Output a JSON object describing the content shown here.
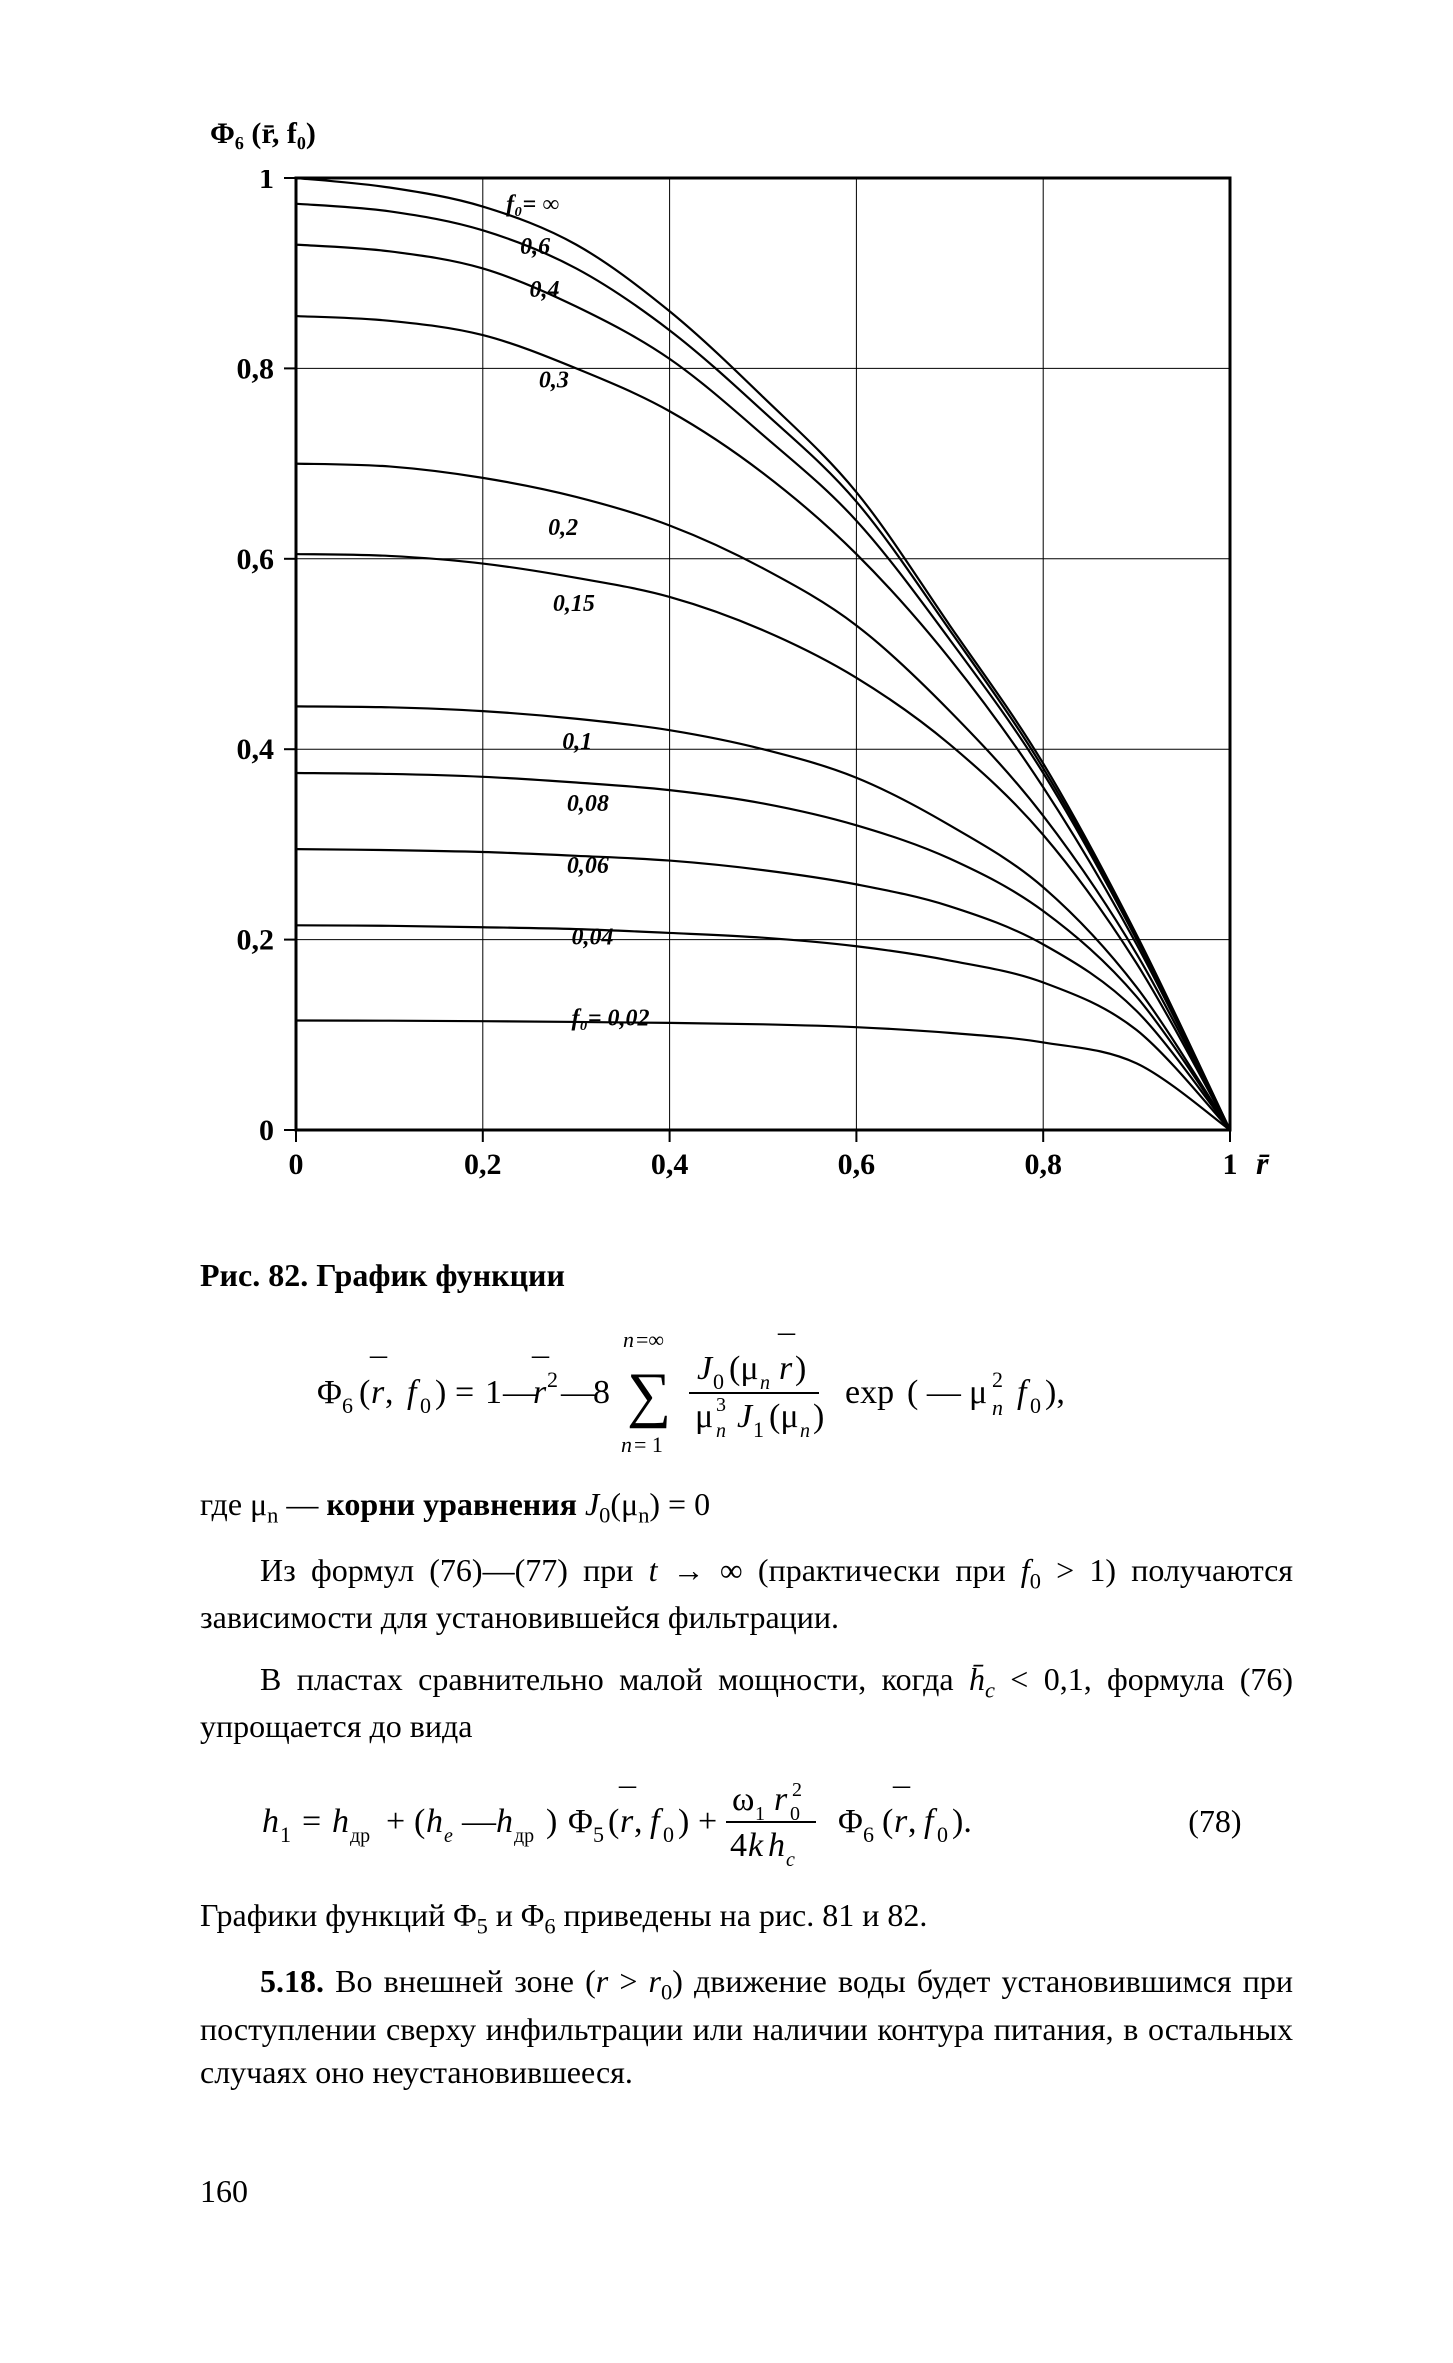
{
  "page_number": "160",
  "chart": {
    "y_axis_title": "Φ₆ (r̄, f₀)",
    "x_axis_title": "r̄",
    "xlim": [
      0,
      1
    ],
    "ylim": [
      0,
      1
    ],
    "xticks": [
      "0",
      "0,2",
      "0,4",
      "0,6",
      "0,8",
      "1"
    ],
    "yticks": [
      "0",
      "0,2",
      "0,4",
      "0,6",
      "0,8",
      "1"
    ],
    "grid_x": [
      0.2,
      0.4,
      0.6,
      0.8
    ],
    "grid_y": [
      0.2,
      0.4,
      0.6,
      0.8
    ],
    "curve_color": "#000000",
    "background": "#ffffff",
    "grid_color": "#000000",
    "label_fontsize": 24,
    "curve_line_width": 2.2,
    "series": [
      {
        "label": "f₀= ∞",
        "label_pos": [
          0.225,
          0.965
        ],
        "pts": [
          [
            0,
            1.0
          ],
          [
            0.1,
            0.99
          ],
          [
            0.2,
            0.97
          ],
          [
            0.3,
            0.93
          ],
          [
            0.4,
            0.86
          ],
          [
            0.5,
            0.77
          ],
          [
            0.6,
            0.67
          ],
          [
            0.7,
            0.53
          ],
          [
            0.8,
            0.385
          ],
          [
            0.9,
            0.205
          ],
          [
            1,
            0
          ]
        ]
      },
      {
        "label": "0,6",
        "label_pos": [
          0.24,
          0.92
        ],
        "pts": [
          [
            0,
            0.973
          ],
          [
            0.1,
            0.965
          ],
          [
            0.2,
            0.945
          ],
          [
            0.3,
            0.905
          ],
          [
            0.4,
            0.84
          ],
          [
            0.5,
            0.755
          ],
          [
            0.6,
            0.66
          ],
          [
            0.7,
            0.525
          ],
          [
            0.8,
            0.38
          ],
          [
            0.9,
            0.203
          ],
          [
            1,
            0
          ]
        ]
      },
      {
        "label": "0,4",
        "label_pos": [
          0.25,
          0.875
        ],
        "pts": [
          [
            0,
            0.93
          ],
          [
            0.1,
            0.923
          ],
          [
            0.2,
            0.905
          ],
          [
            0.3,
            0.865
          ],
          [
            0.4,
            0.81
          ],
          [
            0.5,
            0.73
          ],
          [
            0.6,
            0.64
          ],
          [
            0.7,
            0.515
          ],
          [
            0.8,
            0.375
          ],
          [
            0.9,
            0.2
          ],
          [
            1,
            0
          ]
        ]
      },
      {
        "label": "0,3",
        "label_pos": [
          0.26,
          0.78
        ],
        "pts": [
          [
            0,
            0.855
          ],
          [
            0.1,
            0.85
          ],
          [
            0.2,
            0.835
          ],
          [
            0.3,
            0.8
          ],
          [
            0.4,
            0.755
          ],
          [
            0.5,
            0.69
          ],
          [
            0.6,
            0.605
          ],
          [
            0.7,
            0.495
          ],
          [
            0.8,
            0.36
          ],
          [
            0.9,
            0.195
          ],
          [
            1,
            0
          ]
        ]
      },
      {
        "label": "0,2",
        "label_pos": [
          0.27,
          0.625
        ],
        "pts": [
          [
            0,
            0.7
          ],
          [
            0.1,
            0.697
          ],
          [
            0.2,
            0.685
          ],
          [
            0.3,
            0.665
          ],
          [
            0.4,
            0.635
          ],
          [
            0.5,
            0.59
          ],
          [
            0.6,
            0.53
          ],
          [
            0.7,
            0.44
          ],
          [
            0.8,
            0.33
          ],
          [
            0.9,
            0.185
          ],
          [
            1,
            0
          ]
        ]
      },
      {
        "label": "0,15",
        "label_pos": [
          0.275,
          0.545
        ],
        "pts": [
          [
            0,
            0.605
          ],
          [
            0.1,
            0.603
          ],
          [
            0.2,
            0.595
          ],
          [
            0.3,
            0.58
          ],
          [
            0.4,
            0.56
          ],
          [
            0.5,
            0.525
          ],
          [
            0.6,
            0.475
          ],
          [
            0.7,
            0.405
          ],
          [
            0.8,
            0.31
          ],
          [
            0.9,
            0.175
          ],
          [
            1,
            0
          ]
        ]
      },
      {
        "label": "0,1",
        "label_pos": [
          0.285,
          0.4
        ],
        "pts": [
          [
            0,
            0.445
          ],
          [
            0.1,
            0.444
          ],
          [
            0.2,
            0.44
          ],
          [
            0.3,
            0.432
          ],
          [
            0.4,
            0.42
          ],
          [
            0.5,
            0.4
          ],
          [
            0.6,
            0.37
          ],
          [
            0.7,
            0.32
          ],
          [
            0.8,
            0.255
          ],
          [
            0.9,
            0.15
          ],
          [
            1,
            0
          ]
        ]
      },
      {
        "label": "0,08",
        "label_pos": [
          0.29,
          0.335
        ],
        "pts": [
          [
            0,
            0.375
          ],
          [
            0.1,
            0.374
          ],
          [
            0.2,
            0.371
          ],
          [
            0.3,
            0.365
          ],
          [
            0.4,
            0.357
          ],
          [
            0.5,
            0.343
          ],
          [
            0.6,
            0.32
          ],
          [
            0.7,
            0.285
          ],
          [
            0.8,
            0.23
          ],
          [
            0.9,
            0.14
          ],
          [
            1,
            0
          ]
        ]
      },
      {
        "label": "0,06",
        "label_pos": [
          0.29,
          0.27
        ],
        "pts": [
          [
            0,
            0.295
          ],
          [
            0.1,
            0.294
          ],
          [
            0.2,
            0.292
          ],
          [
            0.3,
            0.288
          ],
          [
            0.4,
            0.283
          ],
          [
            0.5,
            0.273
          ],
          [
            0.6,
            0.258
          ],
          [
            0.7,
            0.235
          ],
          [
            0.8,
            0.195
          ],
          [
            0.9,
            0.125
          ],
          [
            1,
            0
          ]
        ]
      },
      {
        "label": "0,04",
        "label_pos": [
          0.295,
          0.195
        ],
        "pts": [
          [
            0,
            0.215
          ],
          [
            0.1,
            0.2145
          ],
          [
            0.2,
            0.213
          ],
          [
            0.3,
            0.211
          ],
          [
            0.4,
            0.207
          ],
          [
            0.5,
            0.202
          ],
          [
            0.6,
            0.193
          ],
          [
            0.7,
            0.178
          ],
          [
            0.8,
            0.155
          ],
          [
            0.9,
            0.105
          ],
          [
            1,
            0
          ]
        ]
      },
      {
        "label": "f₀= 0,02",
        "label_pos": [
          0.295,
          0.11
        ],
        "pts": [
          [
            0,
            0.115
          ],
          [
            0.1,
            0.1148
          ],
          [
            0.2,
            0.1143
          ],
          [
            0.3,
            0.1135
          ],
          [
            0.4,
            0.1125
          ],
          [
            0.5,
            0.111
          ],
          [
            0.6,
            0.108
          ],
          [
            0.7,
            0.102
          ],
          [
            0.8,
            0.092
          ],
          [
            0.9,
            0.07
          ],
          [
            1,
            0
          ]
        ]
      }
    ]
  },
  "caption": "Рис. 82. График функции",
  "eq1_desc": "Φ₆(r̄, f₀) = 1 − r̄² − 8 Σₙ₌₁^∞ J₀(μₙ r̄) / (μₙ³ J₁(μₙ)) · exp(−μₙ² f₀),",
  "eq1_tail": "где μₙ — корни уравнения J₀(μₙ) = 0",
  "text1": "Из формул (76)—(77) при t → ∞ (практически при f₀ > 1) получаются зависимости для установившейся фильтрации.",
  "text2": "В пластах сравнительно малой мощности, когда h̄c < 0,1, формула (76) упрощается до вида",
  "eq2_num": "(78)",
  "eq2_desc": "h₁ = hдр + (hₑ − hдр) Φ₅(r̄, f₀) + (ω₁ r₀²)/(4k hc) · Φ₆(r̄, f₀).",
  "text3": "Графики функций Φ₅ и Φ₆ приведены на рис. 81 и 82.",
  "text4_lead": "5.18.",
  "text4": "Во внешней зоне (r > r₀) движение воды будет установившимся при поступлении сверху инфильтрации или наличии контура питания, в остальных случаях оно неустановившееся."
}
